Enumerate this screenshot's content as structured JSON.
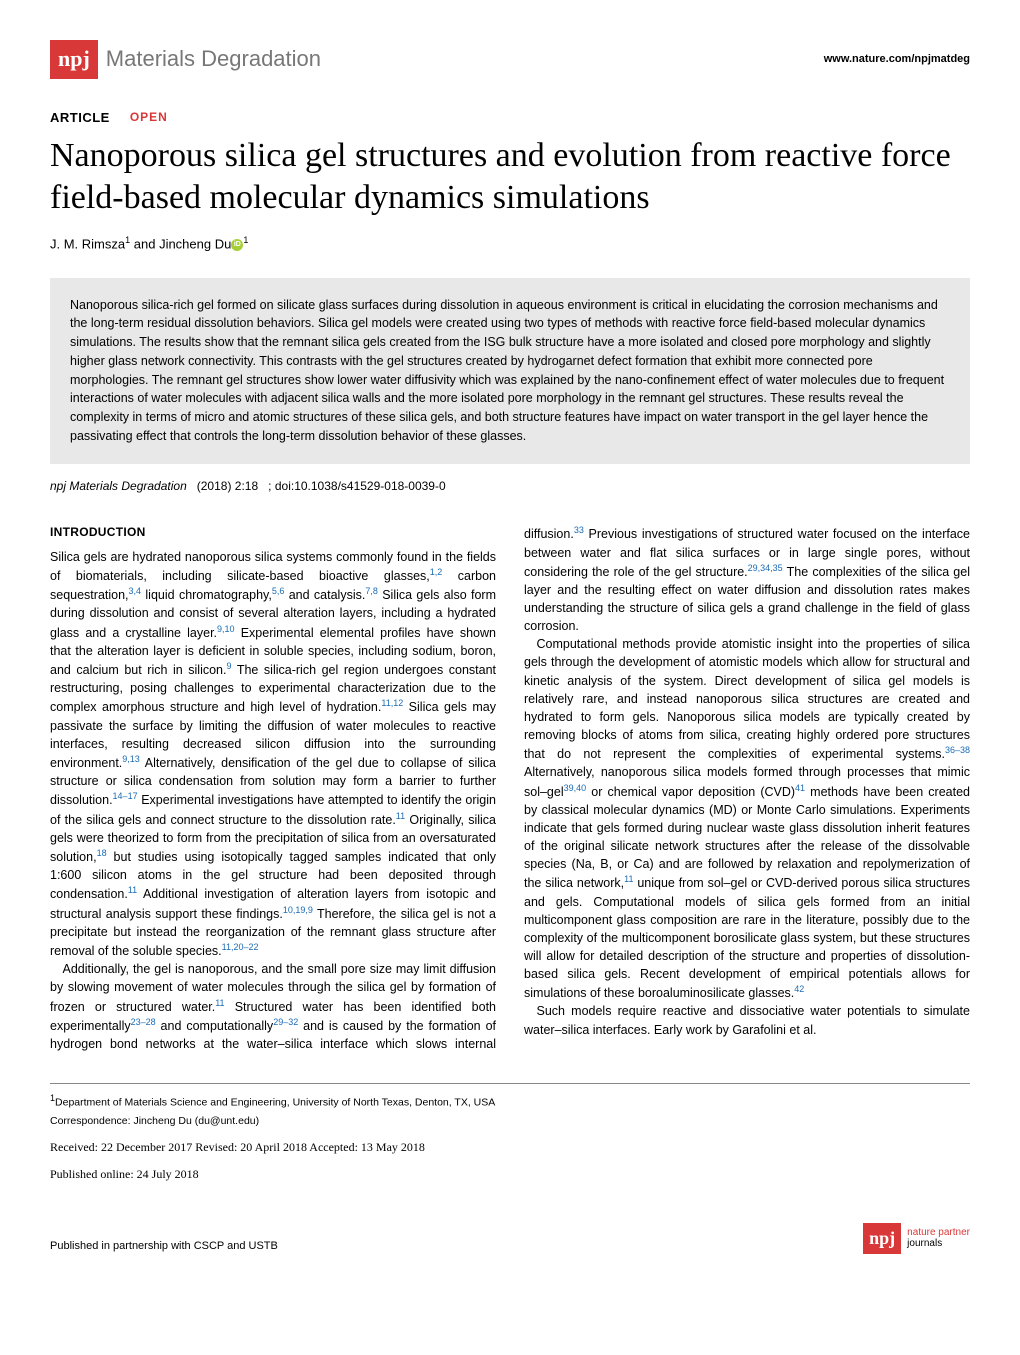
{
  "header": {
    "logo_prefix": "npj",
    "journal_name": "Materials Degradation",
    "website": "www.nature.com/npjmatdeg"
  },
  "article": {
    "type_label": "ARTICLE",
    "open_label": "OPEN",
    "title": "Nanoporous silica gel structures and evolution from reactive force field-based molecular dynamics simulations",
    "author1": "J. M. Rimsza",
    "author1_sup": "1",
    "author_sep": " and ",
    "author2": "Jincheng Du",
    "author2_sup": "1"
  },
  "abstract": "Nanoporous silica-rich gel formed on silicate glass surfaces during dissolution in aqueous environment is critical in elucidating the corrosion mechanisms and the long-term residual dissolution behaviors. Silica gel models were created using two types of methods with reactive force field-based molecular dynamics simulations. The results show that the remnant silica gels created from the ISG bulk structure have a more isolated and closed pore morphology and slightly higher glass network connectivity. This contrasts with the gel structures created by hydrogarnet defect formation that exhibit more connected pore morphologies. The remnant gel structures show lower water diffusivity which was explained by the nano-confinement effect of water molecules due to frequent interactions of water molecules with adjacent silica walls and the more isolated pore morphology in the remnant gel structures. These results reveal the complexity in terms of micro and atomic structures of these silica gels, and both structure features have impact on water transport in the gel layer hence the passivating effect that controls the long-term dissolution behavior of these glasses.",
  "citation": {
    "journal": "npj Materials Degradation",
    "year": "(2018)",
    "vol": "2:18",
    "doi": "; doi:10.1038/s41529-018-0039-0"
  },
  "body": {
    "intro_heading": "INTRODUCTION",
    "p1a": "Silica gels are hydrated nanoporous silica systems commonly found in the fields of biomaterials, including silicate-based bioactive glasses,",
    "p1a_ref": "1,2",
    "p1b": " carbon sequestration,",
    "p1b_ref": "3,4",
    "p1c": " liquid chromatography,",
    "p1c_ref": "5,6",
    "p1d": " and catalysis.",
    "p1d_ref": "7,8",
    "p1e": " Silica gels also form during dissolution and consist of several alteration layers, including a hydrated glass and a crystalline layer.",
    "p1e_ref": "9,10",
    "p1f": " Experimental elemental profiles have shown that the alteration layer is deficient in soluble species, including sodium, boron, and calcium but rich in silicon.",
    "p1f_ref": "9",
    "p1g": " The silica-rich gel region undergoes constant restructuring, posing challenges to experimental characterization due to the complex amorphous structure and high level of hydration.",
    "p1g_ref": "11,12",
    "p1h": " Silica gels may passivate the surface by limiting the diffusion of water molecules to reactive interfaces, resulting decreased silicon diffusion into the surrounding environment.",
    "p1h_ref": "9,13",
    "p1i": " Alternatively, densification of the gel due to collapse of silica structure or silica condensation from solution may form a barrier to further dissolution.",
    "p1i_ref": "14–17",
    "p1j": " Experimental investigations have attempted to identify the origin of the silica gels and connect structure to the dissolution rate.",
    "p1j_ref": "11",
    "p1k": " Originally, silica gels were theorized to form from the precipitation of silica from an oversaturated solution,",
    "p1k_ref": "18",
    "p1l": " but studies using isotopically tagged samples indicated that only 1:600 silicon atoms in the gel structure had been deposited through condensation.",
    "p1l_ref": "11",
    "p1m": " Additional investigation of alteration layers from isotopic and structural analysis support these findings.",
    "p1m_ref": "10,19,9",
    "p1n": " Therefore, the silica gel is not a precipitate but instead the reorganization of the remnant glass structure after removal of the soluble species.",
    "p1n_ref": "11,20–22",
    "p2a": "Additionally, the gel is nanoporous, and the small pore size may limit diffusion by slowing movement of water molecules through the silica gel by formation of frozen or structured water.",
    "p2a_ref": "11",
    "p2b": " Structured water has been identified both experimentally",
    "p2b_ref": "23–28",
    "p2c": " and computationally",
    "p2c_ref": "29–32",
    "p2d": " and is caused by the formation of hydrogen bond networks at the water–silica interface which slows internal diffusion.",
    "p2d_ref": "33",
    "p2e": " Previous investigations of structured water focused on the interface between water and flat silica surfaces or in large single pores, without considering the role of the gel structure.",
    "p2e_ref": "29,34,35",
    "p2f": " The complexities of the silica gel layer and the resulting effect on water diffusion and dissolution rates makes understanding the structure of silica gels a grand challenge in the field of glass corrosion.",
    "p3a": "Computational methods provide atomistic insight into the properties of silica gels through the development of atomistic models which allow for structural and kinetic analysis of the system. Direct development of silica gel models is relatively rare, and instead nanoporous silica structures are created and hydrated to form gels. Nanoporous silica models are typically created by removing blocks of atoms from silica, creating highly ordered pore structures that do not represent the complexities of experimental systems.",
    "p3a_ref": "36–38",
    "p3b": " Alternatively, nanoporous silica models formed through processes that mimic sol–gel",
    "p3b_ref": "39,40",
    "p3c": " or chemical vapor deposition (CVD)",
    "p3c_ref": "41",
    "p3d": " methods have been created by classical molecular dynamics (MD) or Monte Carlo simulations. Experiments indicate that gels formed during nuclear waste glass dissolution inherit features of the original silicate network structures after the release of the dissolvable species (Na, B, or Ca) and are followed by relaxation and repolymerization of the silica network,",
    "p3d_ref": "11",
    "p3e": " unique from sol–gel or CVD-derived porous silica structures and gels. Computational models of silica gels formed from an initial multicomponent glass composition are rare in the literature, possibly due to the complexity of the multicomponent borosilicate glass system, but these structures will allow for detailed description of the structure and properties of dissolution-based silica gels. Recent development of empirical potentials allows for simulations of these boroaluminosilicate glasses.",
    "p3e_ref": "42",
    "p4": "Such models require reactive and dissociative water potentials to simulate water–silica interfaces. Early work by Garafolini et al."
  },
  "footer": {
    "affiliation": "Department of Materials Science and Engineering, University of North Texas, Denton, TX, USA",
    "affil_sup": "1",
    "correspondence": "Correspondence: Jincheng Du (du@unt.edu)",
    "received": "Received: 22 December 2017 Revised: 20 April 2018 Accepted: 13 May 2018",
    "published": "Published online: 24 July 2018",
    "partnership": "Published in partnership with CSCP and USTB",
    "partner_line1": "nature partner",
    "partner_line2": "journals"
  }
}
